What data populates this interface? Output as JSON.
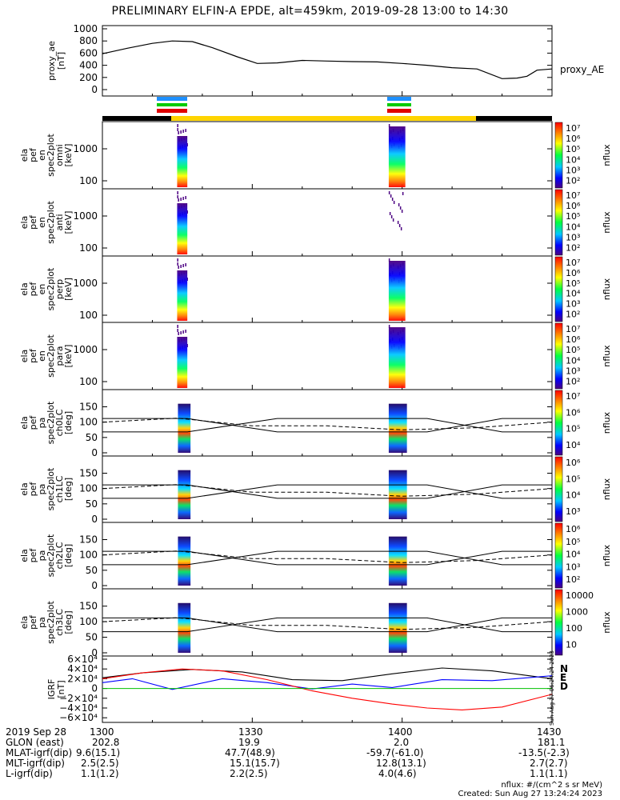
{
  "title": "PRELIMINARY ELFIN-A EPDE, alt=459km, 2019-09-28 13:00 to 14:30",
  "panels": [
    {
      "labels": [
        "proxy_ae",
        "[nT]"
      ],
      "side_label": "proxy_AE",
      "ticks": [
        "1000",
        "800",
        "600",
        "400",
        "200",
        "0"
      ]
    },
    {
      "labels": [
        "ela",
        "pef",
        "en",
        "spec2plot",
        "omni",
        "[keV]"
      ],
      "ticks": [
        "1000",
        "100"
      ],
      "cbar_label": "nflux",
      "cbar_ticks": [
        "10⁷",
        "10⁶",
        "10⁵",
        "10⁴",
        "10³",
        "10²"
      ]
    },
    {
      "labels": [
        "ela",
        "pef",
        "en",
        "spec2plot",
        "anti",
        "[keV]"
      ],
      "ticks": [
        "1000",
        "100"
      ],
      "cbar_label": "nflux",
      "cbar_ticks": [
        "10⁷",
        "10⁶",
        "10⁵",
        "10⁴",
        "10³",
        "10²"
      ]
    },
    {
      "labels": [
        "ela",
        "pef",
        "en",
        "spec2plot",
        "perp",
        "[keV]"
      ],
      "ticks": [
        "1000",
        "100"
      ],
      "cbar_label": "nflux",
      "cbar_ticks": [
        "10⁷",
        "10⁶",
        "10⁵",
        "10⁴",
        "10³",
        "10²"
      ]
    },
    {
      "labels": [
        "ela",
        "pef",
        "en",
        "spec2plot",
        "para",
        "[keV]"
      ],
      "ticks": [
        "1000",
        "100"
      ],
      "cbar_label": "nflux",
      "cbar_ticks": [
        "10⁷",
        "10⁶",
        "10⁵",
        "10⁴",
        "10³",
        "10²"
      ]
    },
    {
      "labels": [
        "ela",
        "pef",
        "pa",
        "spec2plot",
        "ch0LC",
        "[deg]"
      ],
      "ticks": [
        "150",
        "100",
        "50",
        "0"
      ],
      "cbar_label": "nflux",
      "cbar_ticks": [
        "10⁷",
        "10⁶",
        "10⁵",
        "10⁴"
      ]
    },
    {
      "labels": [
        "ela",
        "pef",
        "pa",
        "spec2plot",
        "ch1LC",
        "[deg]"
      ],
      "ticks": [
        "150",
        "100",
        "50",
        "0"
      ],
      "cbar_label": "nflux",
      "cbar_ticks": [
        "10⁶",
        "10⁵",
        "10⁴",
        "10³"
      ]
    },
    {
      "labels": [
        "ela",
        "pef",
        "pa",
        "spec2plot",
        "ch2LC",
        "[deg]"
      ],
      "ticks": [
        "150",
        "100",
        "50",
        "0"
      ],
      "cbar_label": "nflux",
      "cbar_ticks": [
        "10⁶",
        "10⁵",
        "10⁴",
        "10³",
        "10²"
      ]
    },
    {
      "labels": [
        "ela",
        "pef",
        "pa",
        "spec2plot",
        "ch3LC",
        "[deg]"
      ],
      "ticks": [
        "150",
        "100",
        "50",
        "0"
      ],
      "cbar_label": "nflux",
      "cbar_ticks": [
        "10000",
        "1000",
        "100",
        "10"
      ]
    },
    {
      "labels": [
        "IGRF",
        "[nT]"
      ],
      "ticks": [
        "6×10⁴",
        "4×10⁴",
        "2×10⁴",
        "0",
        "−2×10⁴",
        "−4×10⁴",
        "−6×10⁴"
      ],
      "legend": [
        "N",
        "E",
        "D"
      ]
    }
  ],
  "footer": {
    "rows": [
      {
        "name": "2019 Sep 28",
        "values": [
          "1300",
          "1330",
          "1400",
          "1430"
        ]
      },
      {
        "name": "GLON (east)",
        "values": [
          "202.8",
          "19.9",
          "2.0",
          "181.1"
        ]
      },
      {
        "name": "MLAT-igrf(dip)",
        "values": [
          "9.6(15.1)",
          "47.7(48.9)",
          "-59.7(-61.0)",
          "-13.5(-2.3)"
        ]
      },
      {
        "name": "MLT-igrf(dip)",
        "values": [
          "2.5(2.5)",
          "15.1(15.7)",
          "12.8(13.1)",
          "2.7(2.7)"
        ]
      },
      {
        "name": "L-igrf(dip)",
        "values": [
          "1.1(1.2)",
          "2.2(2.5)",
          "4.0(4.6)",
          "1.1(1.1)"
        ]
      }
    ],
    "units_note": "nflux: #/(cm^2 s sr MeV)",
    "created": "Created: Sun Aug 27 13:24:24 2023",
    "side_stamp": "Sun Aug 27 06:24:24 2023"
  },
  "colors": {
    "N": "#000000",
    "E": "#0000ff",
    "D": "#ff0000",
    "yellow_bar": "#ffd400",
    "flag_blue": "#1e90ff",
    "flag_green": "#00cc00",
    "flag_red": "#e00000"
  },
  "chart_data": {
    "type": "line",
    "time_range": [
      "13:00",
      "14:30"
    ],
    "proxy_ae": {
      "ylim": [
        0,
        1000
      ],
      "x_min": [
        0,
        5,
        10,
        14,
        18,
        22,
        27,
        31,
        35,
        40,
        45,
        50,
        55,
        60,
        65,
        70,
        75,
        80,
        83,
        85,
        87,
        90
      ],
      "y": [
        590,
        680,
        760,
        800,
        790,
        690,
        540,
        430,
        440,
        480,
        470,
        460,
        455,
        430,
        400,
        360,
        340,
        180,
        190,
        220,
        320,
        340
      ]
    },
    "spectrogram_passes": [
      {
        "start": "13:14",
        "end": "13:17"
      },
      {
        "start": "13:57",
        "end": "14:00"
      }
    ],
    "igrf": {
      "ylim": [
        -60000,
        60000
      ],
      "series": [
        {
          "name": "N",
          "x_min": [
            0,
            8,
            18,
            28,
            38,
            48,
            58,
            68,
            78,
            90
          ],
          "y": [
            22000,
            32000,
            39000,
            34000,
            18000,
            16000,
            30000,
            42000,
            36000,
            20000
          ]
        },
        {
          "name": "E",
          "x_min": [
            0,
            6,
            14,
            24,
            33,
            42,
            50,
            58,
            68,
            78,
            90
          ],
          "y": [
            12000,
            20000,
            -2000,
            20000,
            12000,
            -1000,
            9000,
            2000,
            18000,
            16000,
            26000
          ]
        },
        {
          "name": "D",
          "x_min": [
            0,
            8,
            16,
            24,
            33,
            42,
            50,
            58,
            65,
            72,
            80,
            90
          ],
          "y": [
            20000,
            32000,
            40000,
            36000,
            18000,
            -5000,
            -20000,
            -32000,
            -40000,
            -44000,
            -38000,
            -12000
          ]
        }
      ]
    }
  }
}
